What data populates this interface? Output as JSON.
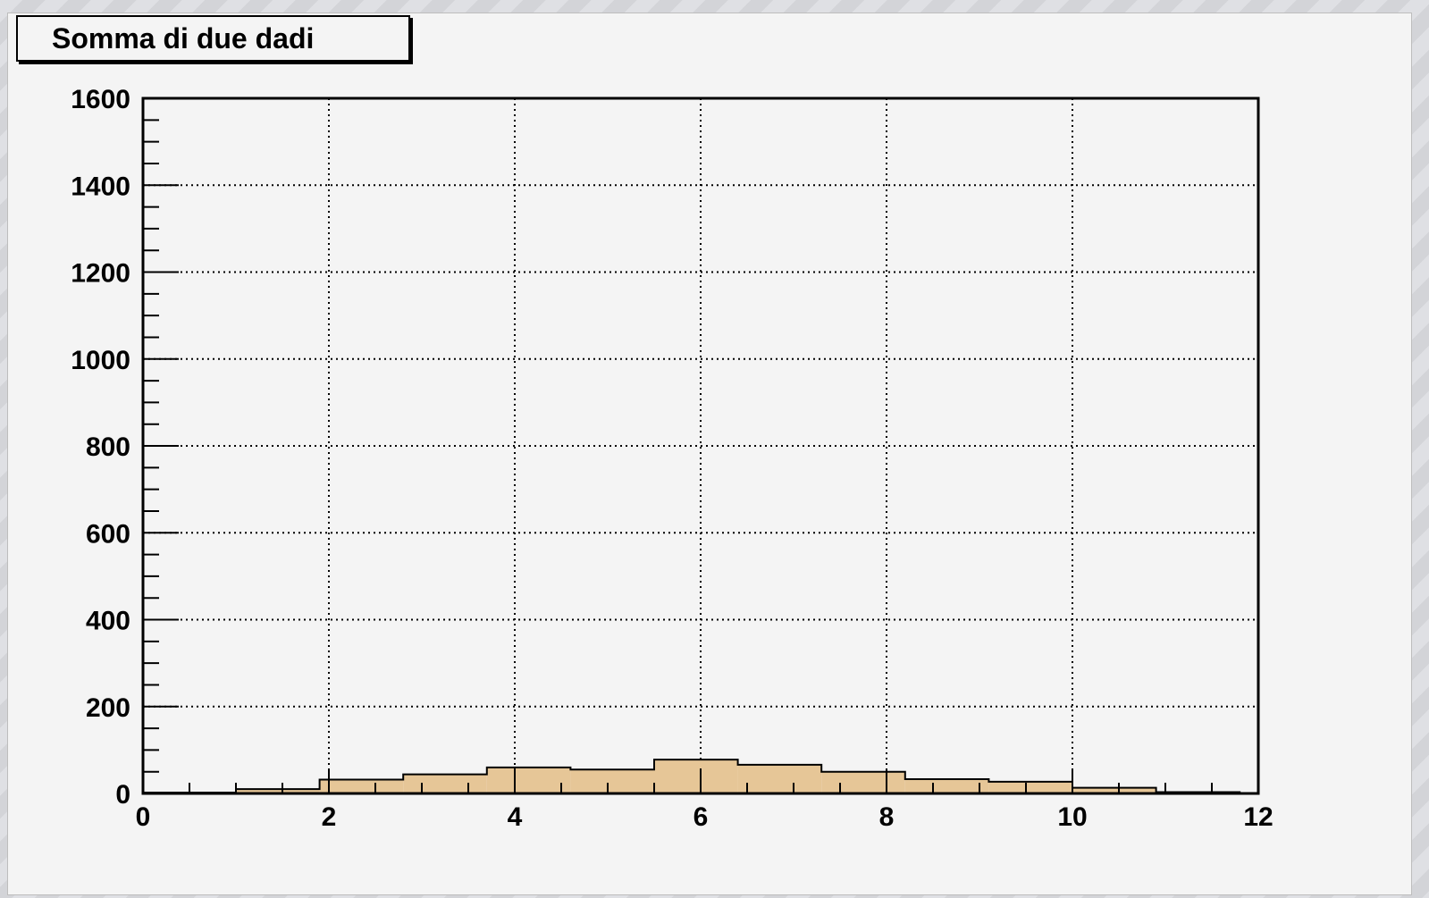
{
  "chart_data": {
    "type": "bar",
    "title": "Somma di due dadi",
    "xlabel": "",
    "ylabel": "",
    "xlim": [
      0,
      12
    ],
    "ylim": [
      0,
      1600
    ],
    "x_tick_labels": [
      "0",
      "2",
      "4",
      "6",
      "8",
      "10",
      "12"
    ],
    "y_tick_labels": [
      "0",
      "200",
      "400",
      "600",
      "800",
      "1000",
      "1200",
      "1400",
      "1600"
    ],
    "bin_edges": [
      1,
      1.9,
      2.8,
      3.7,
      4.6,
      5.5,
      6.4,
      7.3,
      8.2,
      9.1,
      10,
      10.9,
      11.8
    ],
    "values": [
      10,
      32,
      44,
      60,
      55,
      78,
      66,
      50,
      33,
      27,
      13,
      3
    ],
    "underflow_value": 2,
    "grid": true,
    "legend": "none",
    "fill_color": "#e6c697",
    "line_color": "#000000"
  }
}
